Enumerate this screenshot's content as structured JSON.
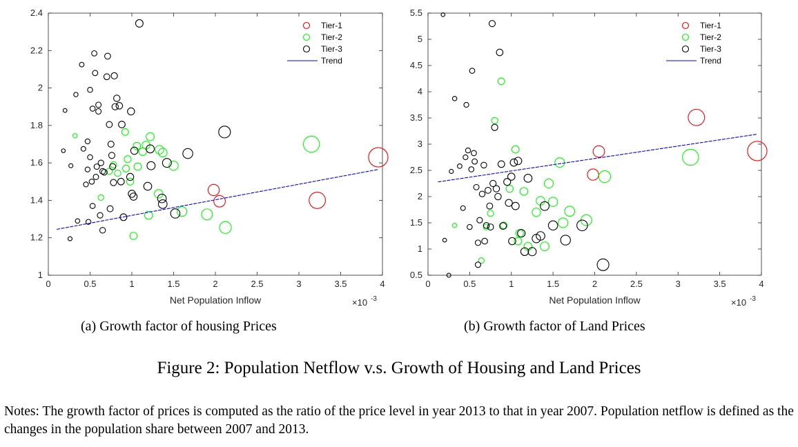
{
  "figure_caption": "Figure 2: Population Netflow v.s. Growth of Housing and Land Prices",
  "notes": "Notes: The growth factor of prices is computed as the ratio of the price level in year 2013 to that in year 2007. Population netflow is defined as the changes in the population share between 2007 and 2013.",
  "colors": {
    "tier1": "#ff0000",
    "tier2": "#00ff00",
    "tier3": "#000000",
    "trend": "#0000ff"
  },
  "chart_data": [
    {
      "type": "scatter",
      "subcaption": "(a)  Growth factor of housing Prices",
      "xlabel": "Net Population Inflow",
      "x_multiplier": "×10",
      "x_multiplier_exp": "-3",
      "xlim": [
        0,
        4
      ],
      "ylim": [
        1,
        2.4
      ],
      "xticks": [
        "0",
        "0.5",
        "1",
        "1.5",
        "2",
        "2.5",
        "3",
        "3.5",
        "4"
      ],
      "yticks": [
        "1",
        "1.2",
        "1.4",
        "1.6",
        "1.8",
        "2",
        "2.2",
        "2.4"
      ],
      "legend": [
        "Tier-1",
        "Tier-2",
        "Tier-3",
        "Trend"
      ],
      "legend_position": "top-right",
      "trend": {
        "x": [
          0.1,
          3.95
        ],
        "y": [
          1.245,
          1.565
        ]
      },
      "series": [
        {
          "name": "Tier-1",
          "x": [
            1.98,
            2.05,
            3.22,
            3.95
          ],
          "y": [
            1.455,
            1.395,
            1.4,
            1.63
          ]
        },
        {
          "name": "Tier-2",
          "x": [
            0.32,
            0.63,
            0.73,
            0.78,
            0.83,
            0.92,
            0.93,
            0.95,
            0.98,
            1.02,
            1.06,
            1.07,
            1.13,
            1.17,
            1.2,
            1.22,
            1.32,
            1.33,
            1.37,
            1.5,
            1.6,
            1.9,
            2.12,
            3.15
          ],
          "y": [
            1.745,
            1.415,
            1.555,
            1.59,
            1.545,
            1.765,
            1.57,
            1.62,
            1.5,
            1.21,
            1.69,
            1.58,
            1.66,
            1.695,
            1.32,
            1.74,
            1.435,
            1.67,
            1.655,
            1.585,
            1.34,
            1.325,
            1.255,
            1.7
          ]
        },
        {
          "name": "Tier-3",
          "x": [
            0.18,
            0.2,
            0.26,
            0.27,
            0.33,
            0.35,
            0.4,
            0.42,
            0.45,
            0.47,
            0.47,
            0.48,
            0.5,
            0.5,
            0.52,
            0.53,
            0.53,
            0.55,
            0.56,
            0.57,
            0.58,
            0.6,
            0.6,
            0.62,
            0.63,
            0.65,
            0.65,
            0.67,
            0.7,
            0.71,
            0.73,
            0.74,
            0.75,
            0.76,
            0.77,
            0.78,
            0.79,
            0.8,
            0.82,
            0.85,
            0.87,
            0.88,
            0.9,
            0.98,
            0.99,
            1.0,
            1.02,
            1.03,
            1.09,
            1.19,
            1.22,
            1.23,
            1.36,
            1.37,
            1.42,
            1.52,
            1.67,
            2.11
          ],
          "y": [
            1.665,
            1.88,
            1.195,
            1.585,
            1.965,
            1.29,
            2.125,
            1.675,
            1.485,
            1.715,
            1.565,
            1.285,
            1.99,
            1.63,
            1.5,
            1.89,
            1.37,
            2.185,
            2.08,
            1.525,
            1.58,
            1.91,
            1.875,
            1.32,
            1.6,
            1.555,
            1.24,
            1.55,
            2.06,
            2.17,
            1.805,
            1.355,
            1.7,
            1.64,
            1.58,
            1.495,
            2.065,
            1.9,
            1.945,
            1.905,
            1.5,
            1.805,
            1.31,
            1.525,
            1.875,
            1.435,
            1.42,
            1.665,
            2.345,
            1.475,
            1.675,
            1.585,
            1.41,
            1.38,
            1.6,
            1.33,
            1.65,
            1.765
          ]
        }
      ]
    },
    {
      "type": "scatter",
      "subcaption": "(b)  Growth factor of Land Prices",
      "xlabel": "Net Population Inflow",
      "x_multiplier": "×10",
      "x_multiplier_exp": "-3",
      "xlim": [
        0,
        4
      ],
      "ylim": [
        0.5,
        5.5
      ],
      "xticks": [
        "0",
        "0.5",
        "1",
        "1.5",
        "2",
        "2.5",
        "3",
        "3.5",
        "4"
      ],
      "yticks": [
        "0.5",
        "1",
        "1.5",
        "2",
        "2.5",
        "3",
        "3.5",
        "4",
        "4.5",
        "5",
        "5.5"
      ],
      "legend": [
        "Tier-1",
        "Tier-2",
        "Tier-3",
        "Trend"
      ],
      "legend_position": "top-right",
      "trend": {
        "x": [
          0.12,
          3.95
        ],
        "y": [
          2.28,
          3.19
        ]
      },
      "series": [
        {
          "name": "Tier-1",
          "x": [
            1.98,
            2.05,
            3.22,
            3.95
          ],
          "y": [
            2.42,
            2.86,
            3.51,
            2.87
          ]
        },
        {
          "name": "Tier-2",
          "x": [
            0.32,
            0.64,
            0.7,
            0.75,
            0.8,
            0.88,
            0.91,
            0.98,
            1.05,
            1.08,
            1.1,
            1.15,
            1.2,
            1.3,
            1.35,
            1.4,
            1.45,
            1.5,
            1.58,
            1.62,
            1.7,
            1.9,
            2.12,
            3.15
          ],
          "y": [
            1.45,
            0.78,
            1.42,
            1.68,
            3.45,
            4.2,
            1.45,
            2.15,
            2.9,
            1.15,
            1.3,
            2.1,
            1.05,
            1.7,
            1.92,
            1.05,
            2.25,
            1.9,
            2.65,
            1.5,
            1.72,
            1.55,
            2.38,
            2.75
          ]
        },
        {
          "name": "Tier-3",
          "x": [
            0.18,
            0.2,
            0.25,
            0.28,
            0.32,
            0.38,
            0.42,
            0.45,
            0.46,
            0.48,
            0.5,
            0.52,
            0.53,
            0.55,
            0.56,
            0.58,
            0.6,
            0.6,
            0.62,
            0.65,
            0.67,
            0.68,
            0.7,
            0.72,
            0.74,
            0.75,
            0.77,
            0.78,
            0.8,
            0.82,
            0.84,
            0.86,
            0.88,
            0.9,
            0.95,
            0.97,
            1.0,
            1.01,
            1.03,
            1.05,
            1.08,
            1.12,
            1.16,
            1.2,
            1.25,
            1.3,
            1.35,
            1.4,
            1.5,
            1.65,
            1.85,
            2.1
          ],
          "y": [
            5.47,
            1.17,
            0.5,
            2.48,
            3.87,
            2.58,
            1.78,
            2.75,
            3.75,
            2.88,
            1.42,
            2.52,
            4.4,
            2.83,
            2.67,
            2.18,
            1.12,
            0.7,
            1.55,
            2.05,
            2.6,
            1.15,
            1.45,
            2.12,
            1.82,
            1.42,
            5.3,
            2.25,
            3.32,
            2.15,
            2.0,
            4.75,
            2.62,
            1.44,
            2.28,
            1.88,
            2.38,
            1.15,
            2.65,
            1.82,
            2.68,
            1.3,
            0.95,
            2.35,
            0.95,
            1.2,
            1.25,
            1.82,
            1.45,
            1.17,
            1.45,
            0.7
          ]
        }
      ]
    }
  ]
}
